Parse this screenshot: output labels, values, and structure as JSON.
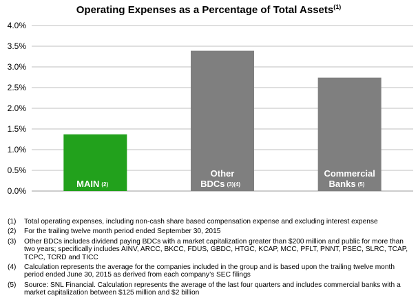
{
  "chart_data": {
    "type": "bar",
    "title": "Operating Expenses as a Percentage of Total Assets",
    "title_superscript": "(1)",
    "xlabel": "",
    "ylabel": "",
    "ylim": [
      0,
      4.0
    ],
    "yticks": [
      0.0,
      0.5,
      1.0,
      1.5,
      2.0,
      2.5,
      3.0,
      3.5,
      4.0
    ],
    "ytick_labels": [
      "0.0%",
      "0.5%",
      "1.0%",
      "1.5%",
      "2.0%",
      "2.5%",
      "3.0%",
      "3.5%",
      "4.0%"
    ],
    "grid": true,
    "categories": [
      {
        "lines": [
          "MAIN"
        ],
        "superscript": "(2)"
      },
      {
        "lines": [
          "Other",
          "BDCs"
        ],
        "superscript": "(3)(4)"
      },
      {
        "lines": [
          "Commercial",
          "Banks"
        ],
        "superscript": "(5)"
      }
    ],
    "values": [
      1.37,
      3.39,
      2.74
    ],
    "colors": [
      "#22a11c",
      "#7f7f7f",
      "#7f7f7f"
    ]
  },
  "footnotes": [
    {
      "num": "(1)",
      "text": "Total operating expenses, including non-cash share based compensation expense and excluding interest expense"
    },
    {
      "num": "(2)",
      "text": "For the trailing twelve month period ended September 30, 2015"
    },
    {
      "num": "(3)",
      "text": "Other BDCs includes dividend paying BDCs with a market capitalization greater than $200 million and public for more than two years; specifically includes AINV, ARCC, BKCC, FDUS, GBDC, HTGC, KCAP, MCC, PFLT, PNNT, PSEC, SLRC, TCAP, TCPC, TCRD and TICC"
    },
    {
      "num": "(4)",
      "text": "Calculation represents the average for the companies included in the group and is based upon the trailing twelve month period ended June 30, 2015 as derived from each company’s SEC filings"
    },
    {
      "num": "(5)",
      "text": "Source: SNL Financial. Calculation represents the average of the last four quarters and includes commercial banks with a market capitalization between $125 million and $2 billion"
    }
  ]
}
